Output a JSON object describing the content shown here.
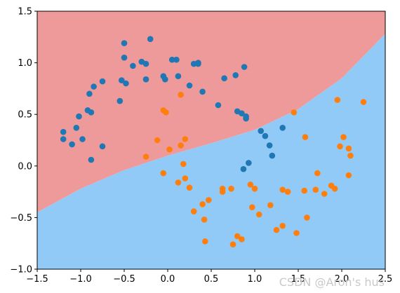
{
  "chart_data": {
    "type": "scatter",
    "title": "",
    "xlabel": "",
    "ylabel": "",
    "xlim": [
      -1.5,
      2.5
    ],
    "ylim": [
      -1.0,
      1.5
    ],
    "xticks": [
      -1.5,
      -1.0,
      -0.5,
      0.0,
      0.5,
      1.0,
      1.5,
      2.0,
      2.5
    ],
    "yticks": [
      -1.0,
      -0.5,
      0.0,
      0.5,
      1.0,
      1.5
    ],
    "xtick_labels": [
      "−1.5",
      "−1.0",
      "−0.5",
      "0.0",
      "0.5",
      "1.0",
      "1.5",
      "2.0",
      "2.5"
    ],
    "ytick_labels": [
      "−1.0",
      "−0.5",
      "0.0",
      "0.5",
      "1.0",
      "1.5"
    ],
    "grid": false,
    "decision_boundary": {
      "description": "curved boundary separating two classes",
      "points": [
        [
          -1.5,
          -0.45
        ],
        [
          -1.0,
          -0.22
        ],
        [
          -0.5,
          -0.04
        ],
        [
          0.0,
          0.1
        ],
        [
          0.5,
          0.22
        ],
        [
          1.0,
          0.35
        ],
        [
          1.5,
          0.55
        ],
        [
          2.0,
          0.85
        ],
        [
          2.5,
          1.28
        ]
      ],
      "above_color": "#ee9a9a",
      "below_color": "#91caf7"
    },
    "series": [
      {
        "color": "#1f77b4",
        "points": [
          [
            -1.2,
            0.33
          ],
          [
            -1.2,
            0.26
          ],
          [
            -1.1,
            0.21
          ],
          [
            -1.05,
            0.37
          ],
          [
            -1.02,
            0.48
          ],
          [
            -0.98,
            0.26
          ],
          [
            -0.92,
            0.54
          ],
          [
            -0.9,
            0.7
          ],
          [
            -0.88,
            0.52
          ],
          [
            -0.88,
            0.06
          ],
          [
            -0.85,
            0.77
          ],
          [
            -0.75,
            0.82
          ],
          [
            -0.75,
            0.19
          ],
          [
            -0.55,
            0.63
          ],
          [
            -0.53,
            0.83
          ],
          [
            -0.5,
            1.19
          ],
          [
            -0.5,
            1.05
          ],
          [
            -0.48,
            0.8
          ],
          [
            -0.4,
            0.97
          ],
          [
            -0.3,
            1.01
          ],
          [
            -0.25,
            0.99
          ],
          [
            -0.25,
            0.84
          ],
          [
            -0.2,
            1.23
          ],
          [
            -0.05,
            0.87
          ],
          [
            -0.03,
            0.84
          ],
          [
            0.05,
            1.03
          ],
          [
            0.1,
            1.03
          ],
          [
            0.12,
            0.87
          ],
          [
            0.25,
            0.78
          ],
          [
            0.3,
            0.99
          ],
          [
            0.35,
            0.99
          ],
          [
            0.35,
            1.0
          ],
          [
            0.4,
            0.72
          ],
          [
            0.58,
            0.59
          ],
          [
            0.65,
            0.85
          ],
          [
            0.78,
            0.88
          ],
          [
            0.8,
            0.53
          ],
          [
            0.85,
            0.51
          ],
          [
            0.88,
            0.96
          ],
          [
            0.9,
            0.48
          ],
          [
            0.9,
            0.46
          ],
          [
            1.07,
            0.34
          ],
          [
            1.12,
            0.29
          ],
          [
            1.17,
            0.2
          ],
          [
            1.2,
            0.1
          ],
          [
            1.32,
            0.37
          ],
          [
            0.93,
            0.03
          ],
          [
            0.87,
            -0.03
          ]
        ]
      },
      {
        "color": "#ff7f0e",
        "points": [
          [
            -0.25,
            0.09
          ],
          [
            -0.12,
            0.25
          ],
          [
            -0.05,
            0.54
          ],
          [
            -0.02,
            0.52
          ],
          [
            -0.05,
            -0.07
          ],
          [
            0.02,
            0.16
          ],
          [
            0.12,
            -0.16
          ],
          [
            0.15,
            0.69
          ],
          [
            0.15,
            0.2
          ],
          [
            0.2,
            0.26
          ],
          [
            0.18,
            0.02
          ],
          [
            0.2,
            -0.12
          ],
          [
            0.25,
            -0.21
          ],
          [
            0.3,
            -0.44
          ],
          [
            0.4,
            -0.37
          ],
          [
            0.42,
            -0.52
          ],
          [
            0.43,
            -0.73
          ],
          [
            0.47,
            -0.33
          ],
          [
            0.63,
            -0.25
          ],
          [
            0.63,
            -0.22
          ],
          [
            0.73,
            -0.22
          ],
          [
            0.75,
            -0.76
          ],
          [
            0.8,
            -0.68
          ],
          [
            0.85,
            -0.71
          ],
          [
            0.95,
            -0.18
          ],
          [
            0.97,
            -0.4
          ],
          [
            1.0,
            -0.22
          ],
          [
            1.05,
            -0.47
          ],
          [
            1.18,
            -0.38
          ],
          [
            1.25,
            -0.62
          ],
          [
            1.32,
            -0.58
          ],
          [
            1.32,
            -0.23
          ],
          [
            1.38,
            -0.25
          ],
          [
            1.45,
            0.52
          ],
          [
            1.48,
            -0.65
          ],
          [
            1.57,
            -0.24
          ],
          [
            1.58,
            0.28
          ],
          [
            1.6,
            -0.5
          ],
          [
            1.7,
            -0.23
          ],
          [
            1.72,
            -0.07
          ],
          [
            1.8,
            -0.27
          ],
          [
            1.88,
            -0.19
          ],
          [
            1.95,
            0.64
          ],
          [
            1.98,
            0.19
          ],
          [
            2.02,
            0.28
          ],
          [
            2.08,
            0.17
          ],
          [
            2.1,
            0.1
          ],
          [
            2.08,
            -0.09
          ],
          [
            2.25,
            0.62
          ],
          [
            1.92,
            -0.22
          ]
        ]
      }
    ]
  },
  "watermark": "CSDN @Aron's hus"
}
